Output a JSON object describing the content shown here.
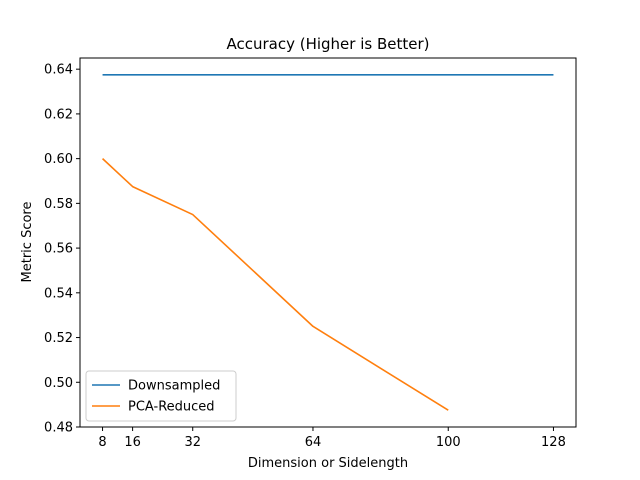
{
  "chart_data": {
    "type": "line",
    "title": "Accuracy (Higher is Better)",
    "xlabel": "Dimension or Sidelength",
    "ylabel": "Metric Score",
    "xlim": [
      2.0,
      134.0
    ],
    "ylim": [
      0.48,
      0.645
    ],
    "xticks": [
      8,
      16,
      32,
      64,
      100,
      128
    ],
    "yticks": [
      0.48,
      0.5,
      0.52,
      0.54,
      0.56,
      0.58,
      0.6,
      0.62,
      0.64
    ],
    "ytick_labels": [
      "0.48",
      "0.50",
      "0.52",
      "0.54",
      "0.56",
      "0.58",
      "0.60",
      "0.62",
      "0.64"
    ],
    "grid": false,
    "legend": "lower-left",
    "series": [
      {
        "name": "Downsampled",
        "color": "#1f77b4",
        "x": [
          8,
          16,
          32,
          64,
          128
        ],
        "y": [
          0.6375,
          0.6375,
          0.6375,
          0.6375,
          0.6375
        ]
      },
      {
        "name": "PCA-Reduced",
        "color": "#ff7f0e",
        "x": [
          8,
          16,
          32,
          64,
          100
        ],
        "y": [
          0.6,
          0.5875,
          0.575,
          0.525,
          0.4875
        ]
      }
    ]
  }
}
